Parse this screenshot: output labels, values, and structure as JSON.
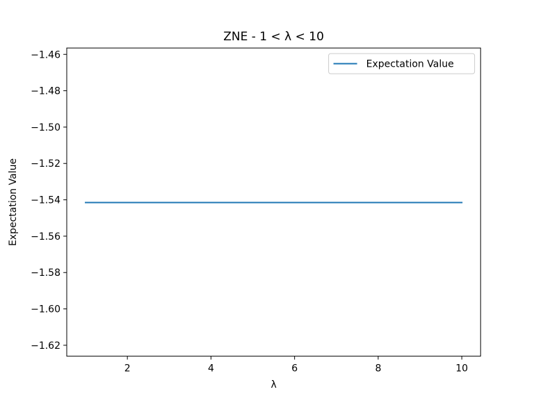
{
  "chart_data": {
    "type": "line",
    "title": "ZNE - 1 < λ < 10",
    "xlabel": "λ",
    "ylabel": "Expectation Value",
    "xlim": [
      0.55,
      10.45
    ],
    "ylim": [
      -1.626,
      -1.4565
    ],
    "xticks": [
      2,
      4,
      6,
      8,
      10
    ],
    "yticks": [
      -1.46,
      -1.48,
      -1.5,
      -1.52,
      -1.54,
      -1.56,
      -1.58,
      -1.6,
      -1.62
    ],
    "xtick_labels": [
      "2",
      "4",
      "6",
      "8",
      "10"
    ],
    "ytick_labels": [
      "−1.46",
      "−1.48",
      "−1.50",
      "−1.52",
      "−1.54",
      "−1.56",
      "−1.58",
      "−1.60",
      "−1.62"
    ],
    "grid": false,
    "legend_position": "top-right",
    "series": [
      {
        "name": "Expectation Value",
        "color": "#1f77b4",
        "x": [
          1,
          10
        ],
        "y": [
          -1.5415,
          -1.5415
        ]
      }
    ]
  }
}
